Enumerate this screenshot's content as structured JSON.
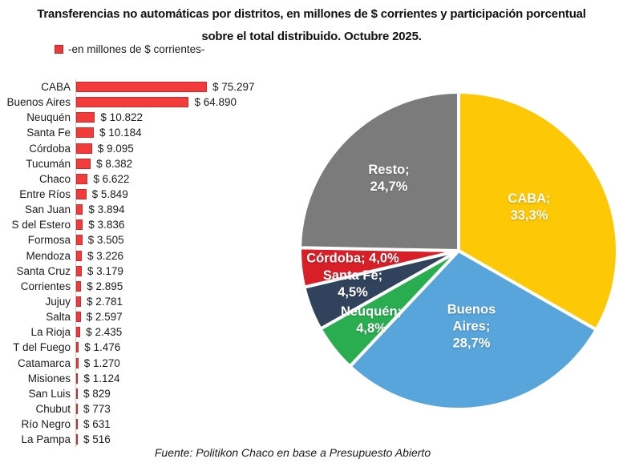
{
  "title": {
    "line1": "Transferencias no automáticas por distritos, en millones de $ corrientes y participación porcentual",
    "line2": "sobre el total distribuido. Octubre 2025."
  },
  "legend": {
    "label": "-en millones de $ corrientes-",
    "swatch_color": "#e8393d"
  },
  "footer": {
    "source": "Fuente: Politikon Chaco en base a Presupuesto Abierto"
  },
  "colors": {
    "bar_fill": "#f43b3c",
    "bar_border": "#ce2a2e",
    "axis_line": "#c6c6c6",
    "text": "#1a1a1a",
    "pie_separator": "#ffffff"
  },
  "chart_data": [
    {
      "type": "bar",
      "orientation": "horizontal",
      "title": "-en millones de $ corrientes-",
      "xlabel": "",
      "ylabel": "",
      "xlim": [
        0,
        80000
      ],
      "grid": false,
      "categories": [
        "CABA",
        "Buenos Aires",
        "Neuquén",
        "Santa Fe",
        "Córdoba",
        "Tucumán",
        "Chaco",
        "Entre Ríos",
        "San Juan",
        "S del Estero",
        "Formosa",
        "Mendoza",
        "Santa Cruz",
        "Corrientes",
        "Jujuy",
        "Salta",
        "La Rioja",
        "T del Fuego",
        "Catamarca",
        "Misiones",
        "San Luis",
        "Chubut",
        "Río Negro",
        "La Pampa"
      ],
      "values": [
        75297,
        64890,
        10822,
        10184,
        9095,
        8382,
        6622,
        5849,
        3894,
        3836,
        3505,
        3226,
        3179,
        2895,
        2781,
        2597,
        2435,
        1476,
        1270,
        1124,
        829,
        773,
        631,
        516
      ],
      "value_labels": [
        "$ 75.297",
        "$ 64.890",
        "$ 10.822",
        "$ 10.184",
        "$ 9.095",
        "$ 8.382",
        "$ 6.622",
        "$ 5.849",
        "$ 3.894",
        "$ 3.836",
        "$ 3.505",
        "$ 3.226",
        "$ 3.179",
        "$ 2.895",
        "$ 2.781",
        "$ 2.597",
        "$ 2.435",
        "$ 1.476",
        "$ 1.270",
        "$ 1.124",
        "$ 829",
        "$ 773",
        "$ 631",
        "$ 516"
      ],
      "bar_color": "#f43b3c"
    },
    {
      "type": "pie",
      "start_angle_deg": -90,
      "direction": "clockwise",
      "legend_position": "none",
      "slices": [
        {
          "name": "CABA",
          "pct": 33.3,
          "color": "#fdc806",
          "label_lines": [
            "CABA;",
            "33,3%"
          ]
        },
        {
          "name": "Buenos Aires",
          "pct": 28.7,
          "color": "#58a5db",
          "label_lines": [
            "Buenos",
            "Aires;",
            "28,7%"
          ]
        },
        {
          "name": "Neuquén",
          "pct": 4.8,
          "color": "#29ad50",
          "label_lines": [
            "Neuquén;",
            "4,8%"
          ]
        },
        {
          "name": "Santa Fe",
          "pct": 4.5,
          "color": "#31435c",
          "label_lines": [
            "Santa Fe;",
            "4,5%"
          ]
        },
        {
          "name": "Córdoba",
          "pct": 4.0,
          "color": "#d81e27",
          "label_lines": [
            "Córdoba; 4,0%"
          ]
        },
        {
          "name": "Resto",
          "pct": 24.7,
          "color": "#7b7b7b",
          "label_lines": [
            "Resto;",
            "24,7%"
          ]
        }
      ]
    }
  ]
}
